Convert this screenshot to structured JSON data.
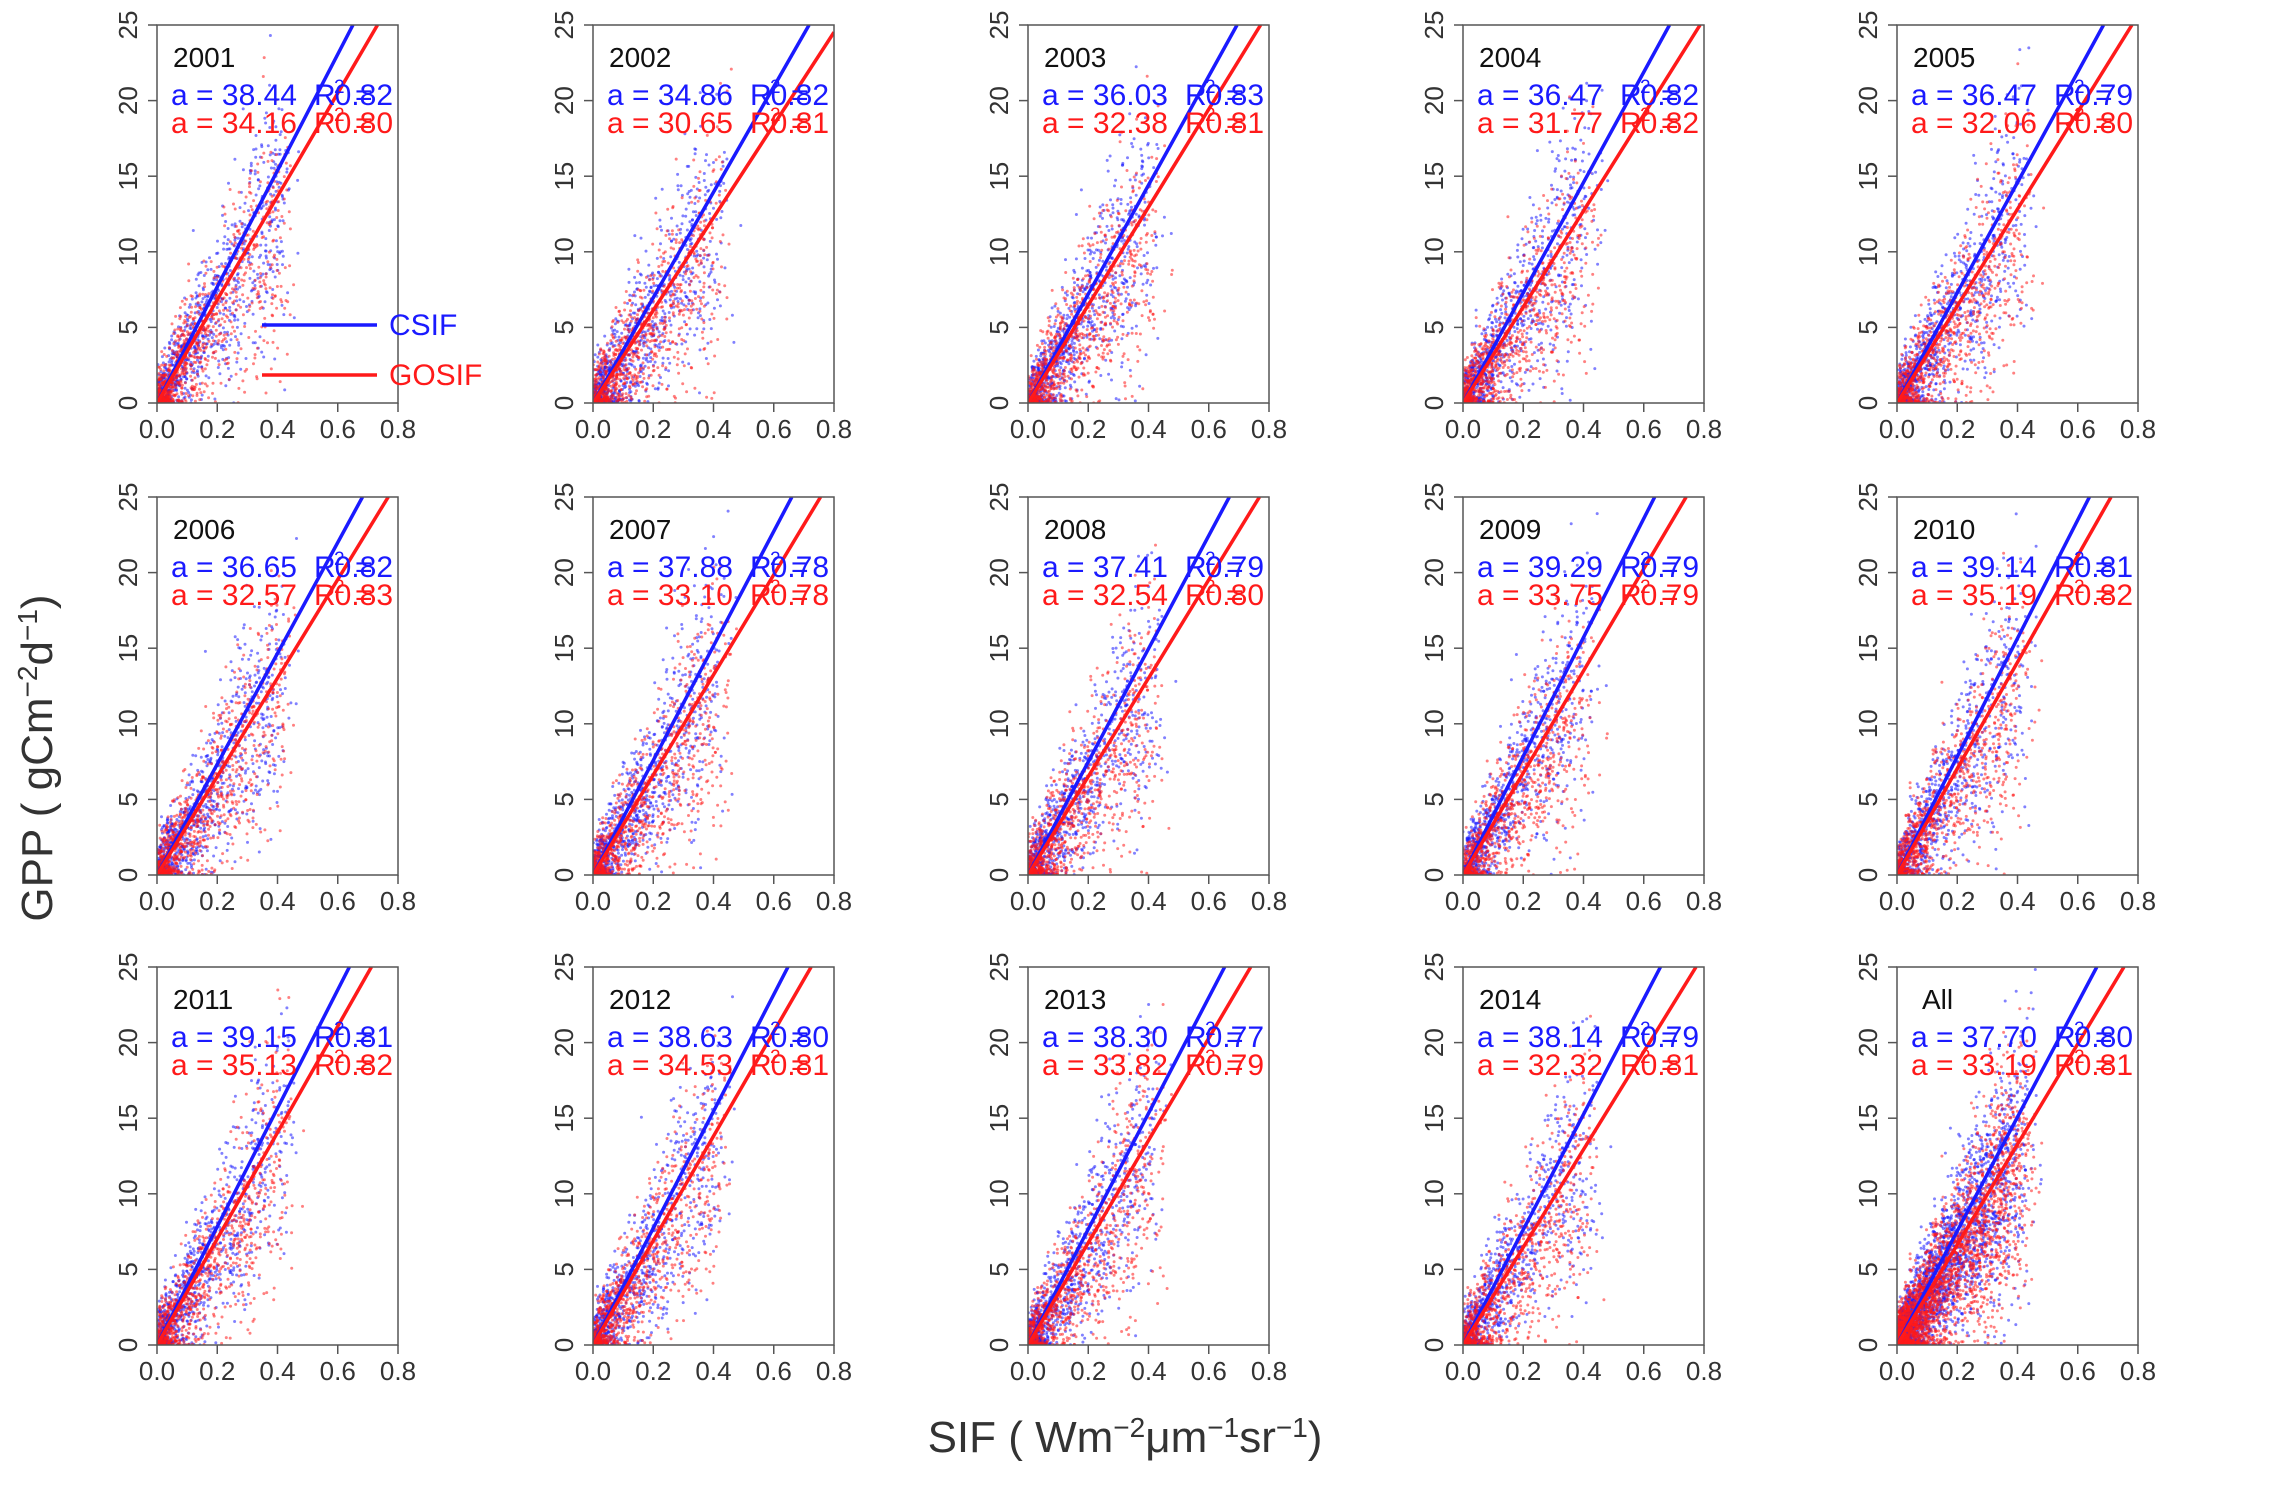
{
  "figure": {
    "ylabel": "GPP ( gCm",
    "ylabel_sup1": "−2",
    "ylabel_mid": "d",
    "ylabel_sup2": "−1",
    "ylabel_end": ")",
    "xlabel": "SIF ( Wm",
    "xlabel_sup1": "−2",
    "xlabel_mid1": "μm",
    "xlabel_sup2": "−1",
    "xlabel_mid2": "sr",
    "xlabel_sup3": "−1",
    "xlabel_end": ")"
  },
  "colors": {
    "csif": "#1a1aff",
    "gosif": "#ff1a1a",
    "axis": "#555555",
    "text": "#333333"
  },
  "legend": {
    "csif_label": "CSIF",
    "gosif_label": "GOSIF",
    "panel": "2001"
  },
  "chart_data": {
    "type": "scatter",
    "x_axis": {
      "range": [
        0,
        0.8
      ],
      "ticks": [
        0.0,
        0.2,
        0.4,
        0.6,
        0.8
      ],
      "tick_labels": [
        "0.0",
        "0.2",
        "0.4",
        "0.6",
        "0.8"
      ]
    },
    "y_axis": {
      "range": [
        0,
        25
      ],
      "ticks": [
        0,
        5,
        10,
        15,
        20,
        25
      ],
      "tick_labels": [
        "0",
        "5",
        "10",
        "15",
        "20",
        "25"
      ]
    },
    "annotation_prefix": "a =",
    "r2_label": "R",
    "r2_sup": "2",
    "r2_eq": "=",
    "series_names": [
      "CSIF",
      "GOSIF"
    ],
    "panels": [
      {
        "title": "2001",
        "csif": {
          "a": "38.44",
          "r2": "0.82"
        },
        "gosif": {
          "a": "34.16",
          "r2": "0.80"
        }
      },
      {
        "title": "2002",
        "csif": {
          "a": "34.86",
          "r2": "0.82"
        },
        "gosif": {
          "a": "30.65",
          "r2": "0.81"
        }
      },
      {
        "title": "2003",
        "csif": {
          "a": "36.03",
          "r2": "0.83"
        },
        "gosif": {
          "a": "32.38",
          "r2": "0.81"
        }
      },
      {
        "title": "2004",
        "csif": {
          "a": "36.47",
          "r2": "0.82"
        },
        "gosif": {
          "a": "31.77",
          "r2": "0.82"
        }
      },
      {
        "title": "2005",
        "csif": {
          "a": "36.47",
          "r2": "0.79"
        },
        "gosif": {
          "a": "32.06",
          "r2": "0.80"
        }
      },
      {
        "title": "2006",
        "csif": {
          "a": "36.65",
          "r2": "0.82"
        },
        "gosif": {
          "a": "32.57",
          "r2": "0.83"
        }
      },
      {
        "title": "2007",
        "csif": {
          "a": "37.88",
          "r2": "0.78"
        },
        "gosif": {
          "a": "33.10",
          "r2": "0.78"
        }
      },
      {
        "title": "2008",
        "csif": {
          "a": "37.41",
          "r2": "0.79"
        },
        "gosif": {
          "a": "32.54",
          "r2": "0.80"
        }
      },
      {
        "title": "2009",
        "csif": {
          "a": "39.29",
          "r2": "0.79"
        },
        "gosif": {
          "a": "33.75",
          "r2": "0.79"
        }
      },
      {
        "title": "2010",
        "csif": {
          "a": "39.14",
          "r2": "0.81"
        },
        "gosif": {
          "a": "35.19",
          "r2": "0.82"
        }
      },
      {
        "title": "2011",
        "csif": {
          "a": "39.15",
          "r2": "0.81"
        },
        "gosif": {
          "a": "35.13",
          "r2": "0.82"
        }
      },
      {
        "title": "2012",
        "csif": {
          "a": "38.63",
          "r2": "0.80"
        },
        "gosif": {
          "a": "34.53",
          "r2": "0.81"
        }
      },
      {
        "title": "2013",
        "csif": {
          "a": "38.30",
          "r2": "0.77"
        },
        "gosif": {
          "a": "33.82",
          "r2": "0.79"
        }
      },
      {
        "title": "2014",
        "csif": {
          "a": "38.14",
          "r2": "0.79"
        },
        "gosif": {
          "a": "32.32",
          "r2": "0.81"
        }
      },
      {
        "title": "All",
        "csif": {
          "a": "37.70",
          "r2": "0.80"
        },
        "gosif": {
          "a": "33.19",
          "r2": "0.81"
        }
      }
    ]
  }
}
